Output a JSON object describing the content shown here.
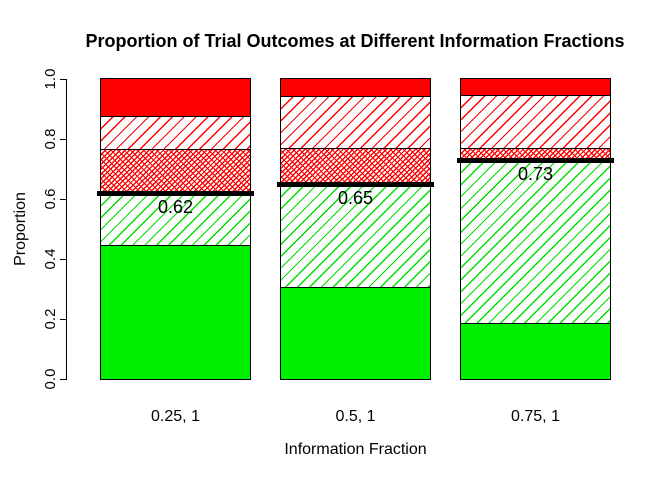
{
  "chart_data": {
    "type": "bar",
    "stacked": true,
    "title": "Proportion of Trial Outcomes at Different Information Fractions",
    "xlabel": "Information Fraction",
    "ylabel": "Proportion",
    "ylim": [
      0,
      1
    ],
    "yticks": [
      "0.0",
      "0.2",
      "0.4",
      "0.6",
      "0.8",
      "1.0"
    ],
    "grid": false,
    "legend": "none",
    "categories": [
      "0.25, 1",
      "0.5, 1",
      "0.75, 1"
    ],
    "series": [
      {
        "name": "solid-green",
        "pattern": "solid",
        "color": "#00EE00",
        "values": [
          0.445,
          0.305,
          0.185
        ]
      },
      {
        "name": "hatched-green",
        "pattern": "hatch",
        "color": "#00DD00",
        "values": [
          0.175,
          0.345,
          0.545
        ]
      },
      {
        "name": "dense-hatched-red",
        "pattern": "hatch-dense",
        "color": "#FF0000",
        "values": [
          0.145,
          0.12,
          0.04
        ]
      },
      {
        "name": "hatched-red",
        "pattern": "hatch",
        "color": "#FF0000",
        "values": [
          0.11,
          0.175,
          0.175
        ]
      },
      {
        "name": "solid-red",
        "pattern": "solid",
        "color": "#FF0000",
        "values": [
          0.125,
          0.055,
          0.055
        ]
      }
    ],
    "threshold_lines": {
      "color": "#000000",
      "values": [
        0.62,
        0.65,
        0.73
      ],
      "labels": [
        "0.62",
        "0.65",
        "0.73"
      ]
    }
  }
}
